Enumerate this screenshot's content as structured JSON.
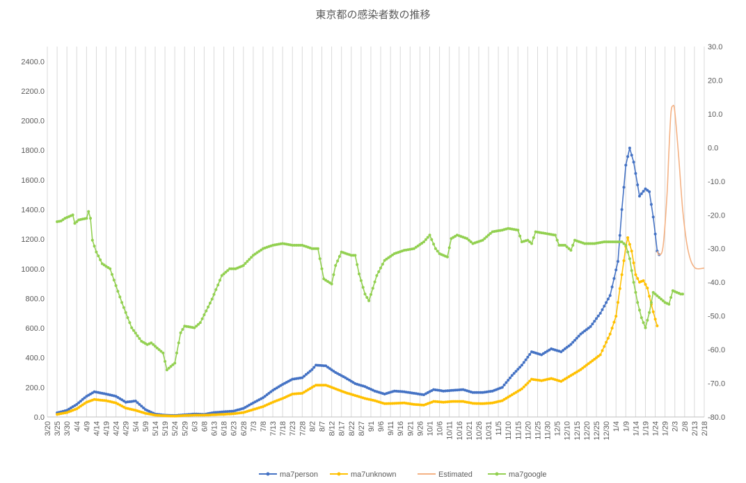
{
  "chart_data": {
    "type": "line",
    "title": "東京都の感染者数の推移",
    "x_axis": {
      "type": "date",
      "start": "2020-03-20",
      "end": "2021-02-18",
      "tick_step_days": 5,
      "tick_labels": [
        "3/20",
        "3/25",
        "3/30",
        "4/4",
        "4/9",
        "4/14",
        "4/19",
        "4/24",
        "4/29",
        "5/4",
        "5/9",
        "5/14",
        "5/19",
        "5/24",
        "5/29",
        "6/3",
        "6/8",
        "6/13",
        "6/18",
        "6/23",
        "6/28",
        "7/3",
        "7/8",
        "7/13",
        "7/18",
        "7/23",
        "7/28",
        "8/2",
        "8/7",
        "8/12",
        "8/17",
        "8/22",
        "8/27",
        "9/1",
        "9/6",
        "9/11",
        "9/16",
        "9/21",
        "9/26",
        "10/1",
        "10/6",
        "10/11",
        "10/16",
        "10/21",
        "10/26",
        "10/31",
        "11/5",
        "11/10",
        "11/15",
        "11/20",
        "11/25",
        "11/30",
        "12/5",
        "12/10",
        "12/15",
        "12/20",
        "12/25",
        "12/30",
        "1/4",
        "1/9",
        "1/14",
        "1/19",
        "1/24",
        "1/29",
        "2/3",
        "2/8",
        "2/13",
        "2/18"
      ]
    },
    "y_left": {
      "min": 0,
      "max": 2500,
      "step": 200,
      "tick_labels": [
        "0.0",
        "200.0",
        "400.0",
        "600.0",
        "800.0",
        "1000.0",
        "1200.0",
        "1400.0",
        "1600.0",
        "1800.0",
        "2000.0",
        "2200.0",
        "2400.0"
      ]
    },
    "y_right": {
      "min": -80,
      "max": 30,
      "step": 10,
      "tick_labels": [
        "-80.0",
        "-70.0",
        "-60.0",
        "-50.0",
        "-40.0",
        "-30.0",
        "-20.0",
        "-10.0",
        "0.0",
        "10.0",
        "20.0",
        "30.0"
      ]
    },
    "grid": "vertical",
    "legend_position": "bottom",
    "series": [
      {
        "name": "ma7person",
        "color": "#4472C4",
        "axis": "left",
        "markers": true,
        "points": [
          [
            "2020-03-25",
            28
          ],
          [
            "2020-03-30",
            45
          ],
          [
            "2020-04-04",
            85
          ],
          [
            "2020-04-09",
            140
          ],
          [
            "2020-04-13",
            170
          ],
          [
            "2020-04-19",
            155
          ],
          [
            "2020-04-24",
            140
          ],
          [
            "2020-04-29",
            100
          ],
          [
            "2020-05-04",
            108
          ],
          [
            "2020-05-09",
            50
          ],
          [
            "2020-05-14",
            20
          ],
          [
            "2020-05-19",
            12
          ],
          [
            "2020-05-24",
            10
          ],
          [
            "2020-05-29",
            15
          ],
          [
            "2020-06-03",
            20
          ],
          [
            "2020-06-08",
            18
          ],
          [
            "2020-06-13",
            30
          ],
          [
            "2020-06-18",
            35
          ],
          [
            "2020-06-23",
            40
          ],
          [
            "2020-06-28",
            58
          ],
          [
            "2020-07-03",
            95
          ],
          [
            "2020-07-08",
            130
          ],
          [
            "2020-07-13",
            180
          ],
          [
            "2020-07-18",
            220
          ],
          [
            "2020-07-23",
            255
          ],
          [
            "2020-07-28",
            265
          ],
          [
            "2020-08-02",
            320
          ],
          [
            "2020-08-04",
            350
          ],
          [
            "2020-08-09",
            345
          ],
          [
            "2020-08-14",
            300
          ],
          [
            "2020-08-19",
            265
          ],
          [
            "2020-08-24",
            225
          ],
          [
            "2020-08-29",
            205
          ],
          [
            "2020-09-03",
            175
          ],
          [
            "2020-09-08",
            155
          ],
          [
            "2020-09-13",
            175
          ],
          [
            "2020-09-18",
            170
          ],
          [
            "2020-09-23",
            160
          ],
          [
            "2020-09-28",
            150
          ],
          [
            "2020-10-03",
            185
          ],
          [
            "2020-10-08",
            175
          ],
          [
            "2020-10-13",
            180
          ],
          [
            "2020-10-18",
            185
          ],
          [
            "2020-10-23",
            165
          ],
          [
            "2020-10-28",
            165
          ],
          [
            "2020-11-02",
            175
          ],
          [
            "2020-11-07",
            200
          ],
          [
            "2020-11-12",
            280
          ],
          [
            "2020-11-17",
            350
          ],
          [
            "2020-11-22",
            440
          ],
          [
            "2020-11-27",
            420
          ],
          [
            "2020-12-02",
            460
          ],
          [
            "2020-12-07",
            440
          ],
          [
            "2020-12-12",
            490
          ],
          [
            "2020-12-17",
            560
          ],
          [
            "2020-12-22",
            610
          ],
          [
            "2020-12-27",
            700
          ],
          [
            "2021-01-01",
            820
          ],
          [
            "2021-01-05",
            1050
          ],
          [
            "2021-01-07",
            1400
          ],
          [
            "2021-01-09",
            1700
          ],
          [
            "2021-01-11",
            1815
          ],
          [
            "2021-01-13",
            1720
          ],
          [
            "2021-01-16",
            1490
          ],
          [
            "2021-01-19",
            1540
          ],
          [
            "2021-01-21",
            1520
          ],
          [
            "2021-01-23",
            1350
          ],
          [
            "2021-01-25",
            1120
          ],
          [
            "2021-01-26",
            1095
          ]
        ]
      },
      {
        "name": "ma7unknown",
        "color": "#FFC000",
        "axis": "left",
        "markers": true,
        "points": [
          [
            "2020-03-25",
            18
          ],
          [
            "2020-03-30",
            30
          ],
          [
            "2020-04-04",
            55
          ],
          [
            "2020-04-09",
            100
          ],
          [
            "2020-04-13",
            118
          ],
          [
            "2020-04-19",
            110
          ],
          [
            "2020-04-24",
            95
          ],
          [
            "2020-04-29",
            60
          ],
          [
            "2020-05-04",
            45
          ],
          [
            "2020-05-09",
            25
          ],
          [
            "2020-05-14",
            12
          ],
          [
            "2020-05-19",
            8
          ],
          [
            "2020-05-24",
            6
          ],
          [
            "2020-05-29",
            10
          ],
          [
            "2020-06-03",
            12
          ],
          [
            "2020-06-08",
            12
          ],
          [
            "2020-06-13",
            15
          ],
          [
            "2020-06-18",
            18
          ],
          [
            "2020-06-23",
            22
          ],
          [
            "2020-06-28",
            30
          ],
          [
            "2020-07-03",
            50
          ],
          [
            "2020-07-08",
            70
          ],
          [
            "2020-07-13",
            100
          ],
          [
            "2020-07-18",
            125
          ],
          [
            "2020-07-23",
            155
          ],
          [
            "2020-07-28",
            160
          ],
          [
            "2020-08-02",
            200
          ],
          [
            "2020-08-04",
            215
          ],
          [
            "2020-08-09",
            215
          ],
          [
            "2020-08-14",
            190
          ],
          [
            "2020-08-19",
            165
          ],
          [
            "2020-08-24",
            145
          ],
          [
            "2020-08-29",
            125
          ],
          [
            "2020-09-03",
            110
          ],
          [
            "2020-09-08",
            90
          ],
          [
            "2020-09-13",
            92
          ],
          [
            "2020-09-18",
            95
          ],
          [
            "2020-09-23",
            85
          ],
          [
            "2020-09-28",
            80
          ],
          [
            "2020-10-03",
            105
          ],
          [
            "2020-10-08",
            100
          ],
          [
            "2020-10-13",
            105
          ],
          [
            "2020-10-18",
            105
          ],
          [
            "2020-10-23",
            92
          ],
          [
            "2020-10-28",
            90
          ],
          [
            "2020-11-02",
            95
          ],
          [
            "2020-11-07",
            110
          ],
          [
            "2020-11-12",
            150
          ],
          [
            "2020-11-17",
            190
          ],
          [
            "2020-11-22",
            255
          ],
          [
            "2020-11-27",
            245
          ],
          [
            "2020-12-02",
            260
          ],
          [
            "2020-12-07",
            240
          ],
          [
            "2020-12-12",
            280
          ],
          [
            "2020-12-17",
            320
          ],
          [
            "2020-12-22",
            370
          ],
          [
            "2020-12-27",
            420
          ],
          [
            "2021-01-01",
            560
          ],
          [
            "2021-01-04",
            680
          ],
          [
            "2021-01-07",
            960
          ],
          [
            "2021-01-09",
            1150
          ],
          [
            "2021-01-10",
            1210
          ],
          [
            "2021-01-12",
            1120
          ],
          [
            "2021-01-14",
            960
          ],
          [
            "2021-01-16",
            910
          ],
          [
            "2021-01-18",
            920
          ],
          [
            "2021-01-20",
            870
          ],
          [
            "2021-01-22",
            760
          ],
          [
            "2021-01-24",
            660
          ],
          [
            "2021-01-25",
            615
          ]
        ]
      },
      {
        "name": "Estimated",
        "color": "#F4B183",
        "axis": "left",
        "markers": false,
        "points": [
          [
            "2021-01-25",
            1120
          ],
          [
            "2021-01-26",
            1095
          ],
          [
            "2021-01-28",
            1150
          ],
          [
            "2021-01-30",
            1500
          ],
          [
            "2021-01-31",
            1800
          ],
          [
            "2021-02-01",
            2050
          ],
          [
            "2021-02-02",
            2100
          ],
          [
            "2021-02-03",
            2060
          ],
          [
            "2021-02-05",
            1750
          ],
          [
            "2021-02-07",
            1400
          ],
          [
            "2021-02-09",
            1180
          ],
          [
            "2021-02-11",
            1060
          ],
          [
            "2021-02-13",
            1010
          ],
          [
            "2021-02-15",
            1000
          ],
          [
            "2021-02-18",
            1005
          ]
        ]
      },
      {
        "name": "ma7google",
        "color": "#92D050",
        "axis": "right",
        "markers": true,
        "points": [
          [
            "2020-03-25",
            -22
          ],
          [
            "2020-03-27",
            -21.8
          ],
          [
            "2020-03-29",
            -21
          ],
          [
            "2020-04-02",
            -20
          ],
          [
            "2020-04-03",
            -22.5
          ],
          [
            "2020-04-05",
            -21.5
          ],
          [
            "2020-04-09",
            -21
          ],
          [
            "2020-04-10",
            -19
          ],
          [
            "2020-04-11",
            -21
          ],
          [
            "2020-04-12",
            -27.5
          ],
          [
            "2020-04-14",
            -31
          ],
          [
            "2020-04-17",
            -34.5
          ],
          [
            "2020-04-21",
            -36
          ],
          [
            "2020-04-24",
            -41
          ],
          [
            "2020-04-27",
            -46
          ],
          [
            "2020-05-02",
            -53.5
          ],
          [
            "2020-05-07",
            -57.5
          ],
          [
            "2020-05-10",
            -58.5
          ],
          [
            "2020-05-12",
            -58
          ],
          [
            "2020-05-15",
            -59.5
          ],
          [
            "2020-05-18",
            -61
          ],
          [
            "2020-05-20",
            -66
          ],
          [
            "2020-05-22",
            -65
          ],
          [
            "2020-05-24",
            -64
          ],
          [
            "2020-05-27",
            -55
          ],
          [
            "2020-05-29",
            -53
          ],
          [
            "2020-06-03",
            -53.5
          ],
          [
            "2020-06-06",
            -52
          ],
          [
            "2020-06-12",
            -45
          ],
          [
            "2020-06-17",
            -38
          ],
          [
            "2020-06-21",
            -36
          ],
          [
            "2020-06-24",
            -36
          ],
          [
            "2020-06-28",
            -35
          ],
          [
            "2020-07-03",
            -32
          ],
          [
            "2020-07-08",
            -30
          ],
          [
            "2020-07-13",
            -29
          ],
          [
            "2020-07-18",
            -28.5
          ],
          [
            "2020-07-23",
            -29
          ],
          [
            "2020-07-28",
            -29
          ],
          [
            "2020-08-02",
            -30
          ],
          [
            "2020-08-05",
            -30
          ],
          [
            "2020-08-06",
            -33
          ],
          [
            "2020-08-08",
            -39
          ],
          [
            "2020-08-12",
            -40.5
          ],
          [
            "2020-08-14",
            -35
          ],
          [
            "2020-08-17",
            -31
          ],
          [
            "2020-08-22",
            -32
          ],
          [
            "2020-08-24",
            -32
          ],
          [
            "2020-08-26",
            -37.5
          ],
          [
            "2020-08-29",
            -43.5
          ],
          [
            "2020-08-31",
            -45.5
          ],
          [
            "2020-09-04",
            -38
          ],
          [
            "2020-09-08",
            -33.5
          ],
          [
            "2020-09-13",
            -31.5
          ],
          [
            "2020-09-18",
            -30.5
          ],
          [
            "2020-09-23",
            -30
          ],
          [
            "2020-09-28",
            -28
          ],
          [
            "2020-10-01",
            -26
          ],
          [
            "2020-10-04",
            -30
          ],
          [
            "2020-10-06",
            -31.5
          ],
          [
            "2020-10-10",
            -32.5
          ],
          [
            "2020-10-12",
            -27
          ],
          [
            "2020-10-15",
            -26
          ],
          [
            "2020-10-20",
            -27
          ],
          [
            "2020-10-23",
            -28.5
          ],
          [
            "2020-10-28",
            -27.5
          ],
          [
            "2020-11-02",
            -25
          ],
          [
            "2020-11-07",
            -24.5
          ],
          [
            "2020-11-10",
            -24
          ],
          [
            "2020-11-15",
            -24.5
          ],
          [
            "2020-11-17",
            -28
          ],
          [
            "2020-11-20",
            -27.5
          ],
          [
            "2020-11-22",
            -28.5
          ],
          [
            "2020-11-24",
            -25
          ],
          [
            "2020-11-29",
            -25.5
          ],
          [
            "2020-12-04",
            -26
          ],
          [
            "2020-12-06",
            -29
          ],
          [
            "2020-12-09",
            -29
          ],
          [
            "2020-12-12",
            -30.5
          ],
          [
            "2020-12-14",
            -27.5
          ],
          [
            "2020-12-19",
            -28.5
          ],
          [
            "2020-12-24",
            -28.5
          ],
          [
            "2020-12-29",
            -28
          ],
          [
            "2021-01-03",
            -28
          ],
          [
            "2021-01-07",
            -28
          ],
          [
            "2021-01-09",
            -29
          ],
          [
            "2021-01-11",
            -33
          ],
          [
            "2021-01-13",
            -40
          ],
          [
            "2021-01-15",
            -46
          ],
          [
            "2021-01-17",
            -50.5
          ],
          [
            "2021-01-19",
            -53.5
          ],
          [
            "2021-01-21",
            -49
          ],
          [
            "2021-01-23",
            -43
          ],
          [
            "2021-01-25",
            -44
          ],
          [
            "2021-01-27",
            -45
          ],
          [
            "2021-01-29",
            -46
          ],
          [
            "2021-01-31",
            -46.5
          ],
          [
            "2021-02-02",
            -42.5
          ],
          [
            "2021-02-04",
            -43
          ],
          [
            "2021-02-06",
            -43.5
          ],
          [
            "2021-02-07",
            -43.5
          ]
        ]
      }
    ]
  }
}
